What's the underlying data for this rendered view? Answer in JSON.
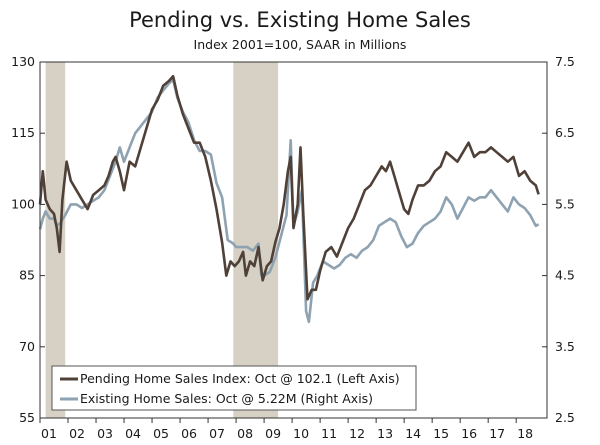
{
  "chart_data": {
    "type": "line",
    "title": "Pending vs. Existing Home Sales",
    "subtitle": "Index 2001=100, SAAR in Millions",
    "x_tick_labels": [
      "01",
      "02",
      "03",
      "04",
      "05",
      "06",
      "07",
      "08",
      "09",
      "10",
      "11",
      "12",
      "13",
      "14",
      "15",
      "16",
      "17",
      "18"
    ],
    "x_range": [
      2001.0,
      2019.1
    ],
    "y_left": {
      "range": [
        55,
        130
      ],
      "ticks": [
        "55",
        "70",
        "85",
        "100",
        "115",
        "130"
      ]
    },
    "y_right": {
      "range": [
        2.5,
        7.5
      ],
      "ticks": [
        "2.5",
        "3.5",
        "4.5",
        "5.5",
        "6.5",
        "7.5"
      ]
    },
    "recessions": [
      [
        2001.2,
        2001.9
      ],
      [
        2007.9,
        2009.5
      ]
    ],
    "colors": {
      "pending": "#4f4038",
      "existing": "#8ea2b1",
      "recession": "#d6d1c4",
      "axis": "#333333"
    },
    "series": [
      {
        "name": "pending",
        "axis": "left",
        "legend": "Pending Home Sales Index: Oct @ 102.1 (Left Axis)",
        "points": [
          [
            2001.0,
            100
          ],
          [
            2001.1,
            107
          ],
          [
            2001.2,
            101
          ],
          [
            2001.35,
            99
          ],
          [
            2001.5,
            98
          ],
          [
            2001.6,
            95
          ],
          [
            2001.7,
            90
          ],
          [
            2001.8,
            101
          ],
          [
            2001.95,
            109
          ],
          [
            2002.1,
            105
          ],
          [
            2002.3,
            103
          ],
          [
            2002.5,
            101
          ],
          [
            2002.7,
            99
          ],
          [
            2002.9,
            102
          ],
          [
            2003.1,
            103
          ],
          [
            2003.3,
            104
          ],
          [
            2003.45,
            106
          ],
          [
            2003.6,
            109
          ],
          [
            2003.7,
            110
          ],
          [
            2003.85,
            107
          ],
          [
            2004.0,
            103
          ],
          [
            2004.2,
            109
          ],
          [
            2004.4,
            108
          ],
          [
            2004.6,
            112
          ],
          [
            2004.8,
            116
          ],
          [
            2005.0,
            120
          ],
          [
            2005.2,
            122
          ],
          [
            2005.4,
            125
          ],
          [
            2005.6,
            126
          ],
          [
            2005.75,
            127
          ],
          [
            2005.9,
            123
          ],
          [
            2006.1,
            119
          ],
          [
            2006.3,
            116
          ],
          [
            2006.5,
            113
          ],
          [
            2006.7,
            113
          ],
          [
            2006.9,
            110
          ],
          [
            2007.1,
            105
          ],
          [
            2007.3,
            99
          ],
          [
            2007.5,
            92
          ],
          [
            2007.65,
            85
          ],
          [
            2007.8,
            88
          ],
          [
            2007.95,
            87
          ],
          [
            2008.1,
            88
          ],
          [
            2008.25,
            90
          ],
          [
            2008.35,
            85
          ],
          [
            2008.5,
            88
          ],
          [
            2008.65,
            87
          ],
          [
            2008.8,
            91
          ],
          [
            2008.95,
            84
          ],
          [
            2009.1,
            87
          ],
          [
            2009.25,
            88
          ],
          [
            2009.4,
            92
          ],
          [
            2009.55,
            95
          ],
          [
            2009.7,
            100
          ],
          [
            2009.85,
            107
          ],
          [
            2009.95,
            110
          ],
          [
            2010.05,
            95
          ],
          [
            2010.2,
            100
          ],
          [
            2010.3,
            112
          ],
          [
            2010.4,
            98
          ],
          [
            2010.55,
            80
          ],
          [
            2010.7,
            82
          ],
          [
            2010.85,
            82
          ],
          [
            2011.0,
            86
          ],
          [
            2011.2,
            90
          ],
          [
            2011.4,
            91
          ],
          [
            2011.6,
            89
          ],
          [
            2011.8,
            92
          ],
          [
            2012.0,
            95
          ],
          [
            2012.2,
            97
          ],
          [
            2012.4,
            100
          ],
          [
            2012.6,
            103
          ],
          [
            2012.8,
            104
          ],
          [
            2013.0,
            106
          ],
          [
            2013.2,
            108
          ],
          [
            2013.35,
            107
          ],
          [
            2013.5,
            109
          ],
          [
            2013.65,
            106
          ],
          [
            2013.8,
            103
          ],
          [
            2014.0,
            99
          ],
          [
            2014.15,
            98
          ],
          [
            2014.3,
            101
          ],
          [
            2014.5,
            104
          ],
          [
            2014.7,
            104
          ],
          [
            2014.9,
            105
          ],
          [
            2015.1,
            107
          ],
          [
            2015.3,
            108
          ],
          [
            2015.5,
            111
          ],
          [
            2015.7,
            110
          ],
          [
            2015.9,
            109
          ],
          [
            2016.1,
            111
          ],
          [
            2016.3,
            113
          ],
          [
            2016.5,
            110
          ],
          [
            2016.7,
            111
          ],
          [
            2016.9,
            111
          ],
          [
            2017.1,
            112
          ],
          [
            2017.3,
            111
          ],
          [
            2017.5,
            110
          ],
          [
            2017.7,
            109
          ],
          [
            2017.9,
            110
          ],
          [
            2018.1,
            106
          ],
          [
            2018.3,
            107
          ],
          [
            2018.5,
            105
          ],
          [
            2018.7,
            104
          ],
          [
            2018.8,
            102.1
          ]
        ]
      },
      {
        "name": "existing",
        "axis": "right",
        "legend": "Existing Home Sales: Oct @ 5.22M (Right Axis)",
        "points": [
          [
            2001.0,
            5.15
          ],
          [
            2001.1,
            5.3
          ],
          [
            2001.2,
            5.4
          ],
          [
            2001.35,
            5.3
          ],
          [
            2001.5,
            5.3
          ],
          [
            2001.6,
            5.2
          ],
          [
            2001.75,
            5.25
          ],
          [
            2001.9,
            5.35
          ],
          [
            2002.1,
            5.5
          ],
          [
            2002.3,
            5.5
          ],
          [
            2002.5,
            5.45
          ],
          [
            2002.7,
            5.5
          ],
          [
            2002.9,
            5.55
          ],
          [
            2003.1,
            5.6
          ],
          [
            2003.3,
            5.7
          ],
          [
            2003.5,
            5.9
          ],
          [
            2003.7,
            6.1
          ],
          [
            2003.85,
            6.3
          ],
          [
            2004.0,
            6.1
          ],
          [
            2004.2,
            6.3
          ],
          [
            2004.4,
            6.5
          ],
          [
            2004.6,
            6.6
          ],
          [
            2004.8,
            6.7
          ],
          [
            2005.0,
            6.8
          ],
          [
            2005.2,
            7.0
          ],
          [
            2005.4,
            7.1
          ],
          [
            2005.6,
            7.2
          ],
          [
            2005.75,
            7.25
          ],
          [
            2005.9,
            7.0
          ],
          [
            2006.1,
            6.8
          ],
          [
            2006.3,
            6.65
          ],
          [
            2006.5,
            6.4
          ],
          [
            2006.7,
            6.25
          ],
          [
            2006.9,
            6.25
          ],
          [
            2007.1,
            6.2
          ],
          [
            2007.3,
            5.8
          ],
          [
            2007.5,
            5.6
          ],
          [
            2007.7,
            5.0
          ],
          [
            2007.9,
            4.95
          ],
          [
            2008.0,
            4.9
          ],
          [
            2008.2,
            4.9
          ],
          [
            2008.4,
            4.9
          ],
          [
            2008.6,
            4.85
          ],
          [
            2008.8,
            4.95
          ],
          [
            2008.9,
            4.5
          ],
          [
            2009.0,
            4.5
          ],
          [
            2009.2,
            4.55
          ],
          [
            2009.4,
            4.75
          ],
          [
            2009.6,
            5.05
          ],
          [
            2009.8,
            5.35
          ],
          [
            2009.95,
            6.4
          ],
          [
            2010.05,
            5.2
          ],
          [
            2010.2,
            5.4
          ],
          [
            2010.35,
            5.7
          ],
          [
            2010.5,
            4.0
          ],
          [
            2010.6,
            3.85
          ],
          [
            2010.75,
            4.4
          ],
          [
            2010.9,
            4.5
          ],
          [
            2011.1,
            4.7
          ],
          [
            2011.3,
            4.65
          ],
          [
            2011.5,
            4.6
          ],
          [
            2011.7,
            4.65
          ],
          [
            2011.9,
            4.75
          ],
          [
            2012.1,
            4.8
          ],
          [
            2012.3,
            4.75
          ],
          [
            2012.5,
            4.85
          ],
          [
            2012.7,
            4.9
          ],
          [
            2012.9,
            5.0
          ],
          [
            2013.1,
            5.2
          ],
          [
            2013.3,
            5.25
          ],
          [
            2013.5,
            5.3
          ],
          [
            2013.7,
            5.25
          ],
          [
            2013.9,
            5.05
          ],
          [
            2014.1,
            4.9
          ],
          [
            2014.3,
            4.95
          ],
          [
            2014.5,
            5.1
          ],
          [
            2014.7,
            5.2
          ],
          [
            2014.9,
            5.25
          ],
          [
            2015.1,
            5.3
          ],
          [
            2015.3,
            5.4
          ],
          [
            2015.5,
            5.6
          ],
          [
            2015.7,
            5.5
          ],
          [
            2015.9,
            5.3
          ],
          [
            2016.1,
            5.45
          ],
          [
            2016.3,
            5.6
          ],
          [
            2016.5,
            5.55
          ],
          [
            2016.7,
            5.6
          ],
          [
            2016.9,
            5.6
          ],
          [
            2017.1,
            5.7
          ],
          [
            2017.3,
            5.6
          ],
          [
            2017.5,
            5.5
          ],
          [
            2017.7,
            5.4
          ],
          [
            2017.9,
            5.6
          ],
          [
            2018.1,
            5.5
          ],
          [
            2018.3,
            5.45
          ],
          [
            2018.5,
            5.35
          ],
          [
            2018.7,
            5.2
          ],
          [
            2018.8,
            5.22
          ]
        ]
      }
    ]
  }
}
